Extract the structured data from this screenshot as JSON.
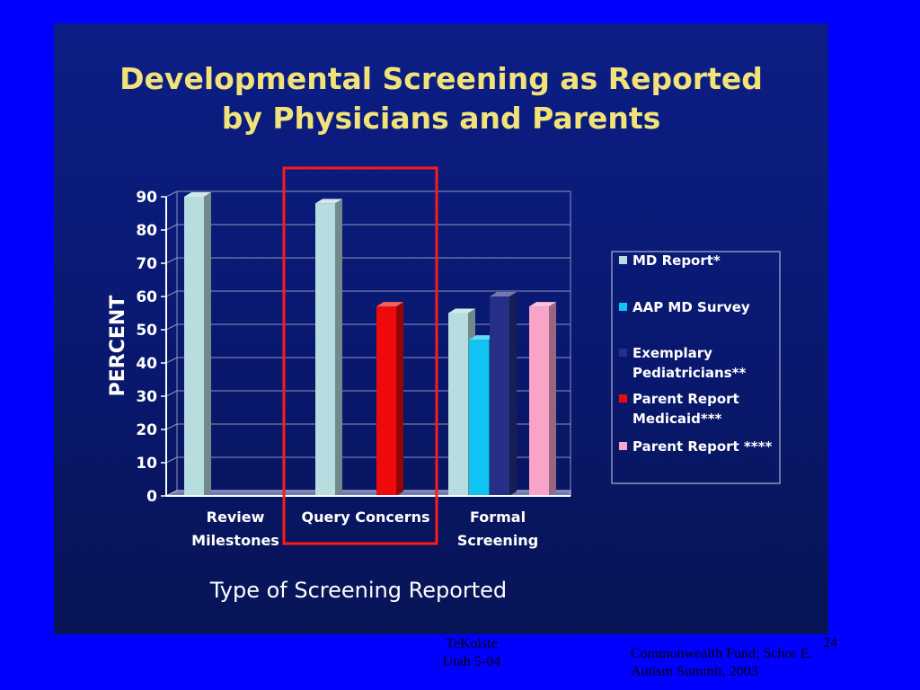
{
  "slide": {
    "footer_left_line1": "TeKolste",
    "footer_left_line2": "Utah 5-04",
    "page_number": "24",
    "footer_right_line1": "Commonwealth Fund; Schor E.",
    "footer_right_line2": "Autism Summit, 2003"
  },
  "chart_data": {
    "type": "bar",
    "title": "Developmental Screening as Reported by Physicians and Parents",
    "title_line1": "Developmental Screening as Reported",
    "title_line2": "by Physicians and Parents",
    "ylabel": "PERCENT",
    "xlabel": "Type of Screening Reported",
    "ylim": [
      0,
      90
    ],
    "yticks": [
      0,
      10,
      20,
      30,
      40,
      50,
      60,
      70,
      80,
      90
    ],
    "grid": true,
    "legend_position": "right",
    "categories": [
      {
        "line1": "Review",
        "line2": "Milestones"
      },
      {
        "line1": "Query Concerns",
        "line2": ""
      },
      {
        "line1": "Formal",
        "line2": "Screening"
      }
    ],
    "series": [
      {
        "name": "MD Report*",
        "color": "#b8dde0",
        "values": [
          90,
          88,
          null
        ]
      },
      {
        "name": "AAP MD Survey",
        "color": "#11c3f2",
        "values": [
          null,
          null,
          47
        ]
      },
      {
        "name": "Exemplary Pediatricians**",
        "name_line1": "Exemplary",
        "name_line2": "Pediatricians**",
        "color": "#262f87",
        "values": [
          null,
          null,
          60
        ]
      },
      {
        "name": "Parent Report Medicaid***",
        "name_line1": "Parent Report",
        "name_line2": "Medicaid***",
        "color": "#ee0a0a",
        "values": [
          null,
          57,
          null
        ]
      },
      {
        "name": "Parent Report ****",
        "color": "#f8a4c9",
        "values": [
          null,
          null,
          57
        ]
      }
    ],
    "formal_screening_md_report": 55,
    "highlight": {
      "category": "Query Concerns",
      "color": "#ff1a1a"
    }
  }
}
